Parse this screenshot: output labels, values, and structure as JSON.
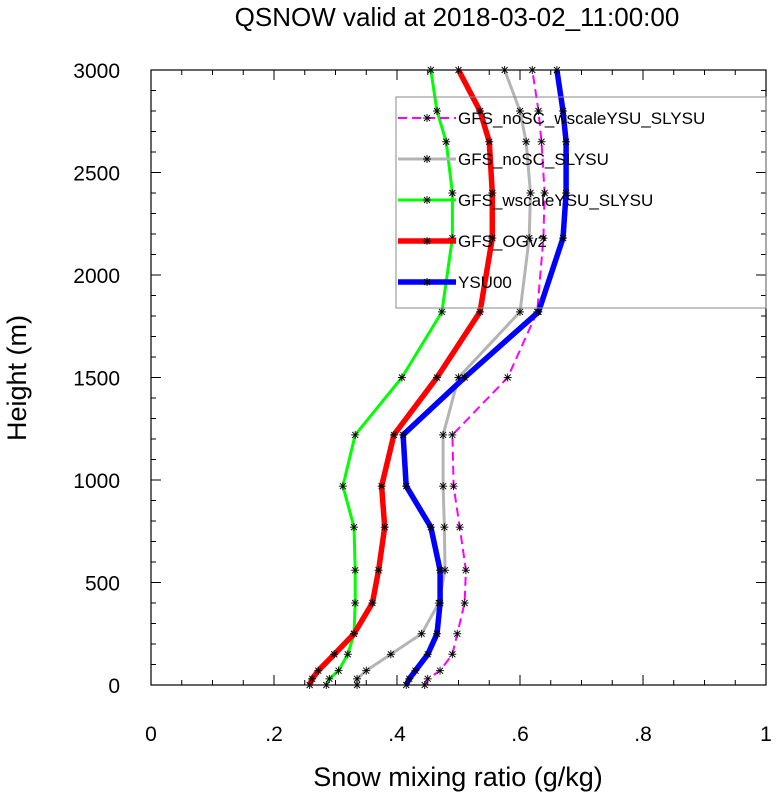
{
  "chart_data": {
    "type": "line",
    "title": "QSNOW valid at 2018-03-02_11:00:00",
    "xlabel": "Snow mixing ratio (g/kg)",
    "ylabel": "Height (m)",
    "xlim": [
      0,
      1
    ],
    "ylim": [
      0,
      3000
    ],
    "x_ticks": [
      {
        "value": 0,
        "label": "0"
      },
      {
        "value": 0.2,
        "label": ".2"
      },
      {
        "value": 0.4,
        "label": ".4"
      },
      {
        "value": 0.6,
        "label": ".6"
      },
      {
        "value": 0.8,
        "label": ".8"
      },
      {
        "value": 1,
        "label": "1"
      }
    ],
    "y_ticks": [
      {
        "value": 0,
        "label": "0"
      },
      {
        "value": 500,
        "label": "500"
      },
      {
        "value": 1000,
        "label": "1000"
      },
      {
        "value": 1500,
        "label": "1500"
      },
      {
        "value": 2000,
        "label": "2000"
      },
      {
        "value": 2500,
        "label": "2500"
      },
      {
        "value": 3000,
        "label": "3000"
      }
    ],
    "legend_position": "top-right",
    "series": [
      {
        "name": "GFS_noSC_wscaleYSU_SLYSU",
        "color": "#ff00ff",
        "style": "dashed",
        "width": "thin",
        "points": [
          [
            0.445,
            0
          ],
          [
            0.45,
            30
          ],
          [
            0.47,
            70
          ],
          [
            0.49,
            150
          ],
          [
            0.498,
            250
          ],
          [
            0.51,
            400
          ],
          [
            0.512,
            560
          ],
          [
            0.502,
            770
          ],
          [
            0.492,
            970
          ],
          [
            0.49,
            1220
          ],
          [
            0.58,
            1500
          ],
          [
            0.628,
            1820
          ],
          [
            0.638,
            2180
          ],
          [
            0.64,
            2400
          ],
          [
            0.635,
            2650
          ],
          [
            0.63,
            2800
          ],
          [
            0.62,
            3000
          ]
        ]
      },
      {
        "name": "GFS_noSC_SLYSU",
        "color": "#b4b4b4",
        "style": "solid",
        "width": "medium",
        "points": [
          [
            0.335,
            0
          ],
          [
            0.335,
            30
          ],
          [
            0.35,
            70
          ],
          [
            0.39,
            150
          ],
          [
            0.44,
            250
          ],
          [
            0.468,
            400
          ],
          [
            0.478,
            560
          ],
          [
            0.477,
            770
          ],
          [
            0.475,
            970
          ],
          [
            0.475,
            1220
          ],
          [
            0.5,
            1500
          ],
          [
            0.6,
            1820
          ],
          [
            0.615,
            2180
          ],
          [
            0.617,
            2400
          ],
          [
            0.61,
            2650
          ],
          [
            0.6,
            2800
          ],
          [
            0.575,
            3000
          ]
        ]
      },
      {
        "name": "GFS_wscaleYSU_SLYSU",
        "color": "#00ff00",
        "style": "solid",
        "width": "medium",
        "points": [
          [
            0.285,
            0
          ],
          [
            0.29,
            30
          ],
          [
            0.305,
            70
          ],
          [
            0.32,
            150
          ],
          [
            0.33,
            250
          ],
          [
            0.332,
            400
          ],
          [
            0.332,
            560
          ],
          [
            0.33,
            770
          ],
          [
            0.312,
            970
          ],
          [
            0.332,
            1220
          ],
          [
            0.408,
            1500
          ],
          [
            0.473,
            1820
          ],
          [
            0.49,
            2180
          ],
          [
            0.49,
            2400
          ],
          [
            0.48,
            2650
          ],
          [
            0.465,
            2800
          ],
          [
            0.455,
            3000
          ]
        ]
      },
      {
        "name": "GFS_OGv2",
        "color": "#ff0000",
        "style": "solid",
        "width": "thick",
        "points": [
          [
            0.258,
            0
          ],
          [
            0.262,
            30
          ],
          [
            0.272,
            70
          ],
          [
            0.298,
            150
          ],
          [
            0.33,
            250
          ],
          [
            0.36,
            400
          ],
          [
            0.37,
            560
          ],
          [
            0.38,
            770
          ],
          [
            0.375,
            970
          ],
          [
            0.395,
            1220
          ],
          [
            0.465,
            1500
          ],
          [
            0.535,
            1820
          ],
          [
            0.555,
            2180
          ],
          [
            0.555,
            2400
          ],
          [
            0.55,
            2650
          ],
          [
            0.535,
            2800
          ],
          [
            0.5,
            3000
          ]
        ]
      },
      {
        "name": "YSU00",
        "color": "#0000ff",
        "style": "solid",
        "width": "thick",
        "points": [
          [
            0.415,
            0
          ],
          [
            0.42,
            30
          ],
          [
            0.43,
            70
          ],
          [
            0.45,
            150
          ],
          [
            0.465,
            250
          ],
          [
            0.47,
            400
          ],
          [
            0.47,
            560
          ],
          [
            0.455,
            770
          ],
          [
            0.415,
            970
          ],
          [
            0.41,
            1220
          ],
          [
            0.51,
            1500
          ],
          [
            0.63,
            1820
          ],
          [
            0.67,
            2180
          ],
          [
            0.675,
            2400
          ],
          [
            0.675,
            2650
          ],
          [
            0.67,
            2800
          ],
          [
            0.66,
            3000
          ]
        ]
      }
    ]
  }
}
